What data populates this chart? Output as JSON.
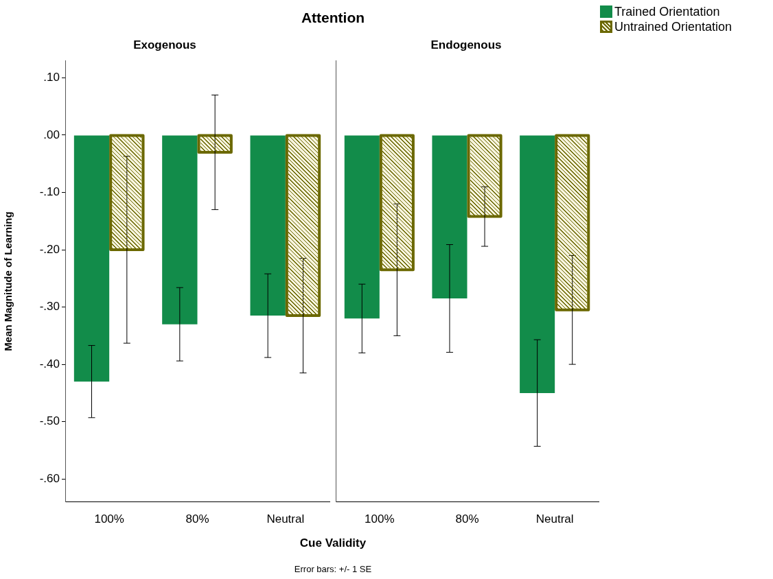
{
  "chart_data": [
    {
      "type": "bar",
      "title": "Exogenous",
      "legend": "top right",
      "xlabel": "Cue Validity",
      "ylabel": "Mean Magnitude of Learning",
      "annotations": [
        "Attention",
        "Error bars: +/- 1 SE"
      ],
      "categories": [
        "100%",
        "80%",
        "Neutral"
      ],
      "series": [
        {
          "name": "Trained Orientation",
          "color": "#128c4a",
          "values": [
            -0.43,
            -0.33,
            -0.315
          ],
          "errors": [
            0.063,
            0.064,
            0.073
          ]
        },
        {
          "name": "Untrained Orientation",
          "color": "#6b6800",
          "values": [
            -0.2,
            -0.03,
            -0.315
          ],
          "errors": [
            0.163,
            0.1,
            0.1
          ]
        }
      ],
      "ylim": [
        -0.64,
        0.13
      ],
      "yticks": [
        {
          "value": 0.1,
          "label": ".10"
        },
        {
          "value": 0,
          "label": ".00"
        },
        {
          "value": -0.1,
          "label": "-.10"
        },
        {
          "value": -0.2,
          "label": "-.20"
        },
        {
          "value": -0.3,
          "label": "-.30"
        },
        {
          "value": -0.4,
          "label": "-.40"
        },
        {
          "value": -0.5,
          "label": "-.50"
        },
        {
          "value": -0.6,
          "label": "-.60"
        }
      ],
      "grid": false
    },
    {
      "type": "bar",
      "title": "Endogenous",
      "categories": [
        "100%",
        "80%",
        "Neutral"
      ],
      "series": [
        {
          "color": "#128c4a",
          "values": [
            -0.32,
            -0.285,
            -0.45
          ],
          "errors": [
            0.06,
            0.094,
            0.093
          ]
        },
        {
          "color": "#6b6800",
          "values": [
            -0.235,
            -0.142,
            -0.305
          ],
          "errors": [
            0.115,
            0.052,
            0.095
          ]
        }
      ],
      "ylim": [
        -0.64,
        0.13
      ],
      "yticks": [
        0.1,
        0,
        -0.1,
        -0.2,
        -0.3,
        -0.4,
        -0.5,
        -0.6
      ],
      "tick_labels": "x",
      "grid": false
    }
  ]
}
